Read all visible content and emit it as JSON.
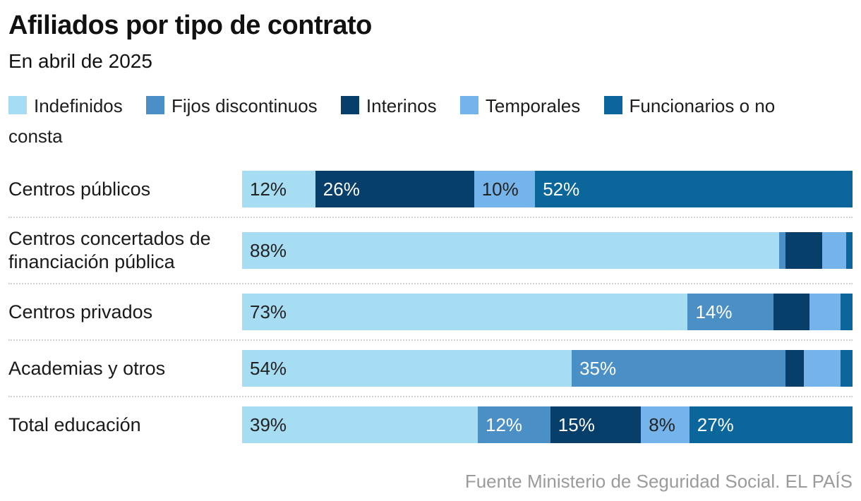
{
  "header": {
    "title": "Afiliados por tipo de contrato",
    "subtitle": "En abril de 2025"
  },
  "legend": [
    {
      "label": "Indefinidos",
      "color": "#A6DDF3"
    },
    {
      "label": "Fijos discontinuos",
      "color": "#4A90C6"
    },
    {
      "label": "Interinos",
      "color": "#083F6A"
    },
    {
      "label": "Temporales",
      "color": "#74B4EB"
    },
    {
      "label": "Funcionarios o no consta",
      "color": "#0B679B"
    }
  ],
  "chart_data": {
    "type": "bar",
    "stacked": true,
    "orientation": "horizontal",
    "unit": "%",
    "xlim": [
      0,
      100
    ],
    "grid": false,
    "legend_position": "top",
    "series_names": [
      "Indefinidos",
      "Fijos discontinuos",
      "Interinos",
      "Temporales",
      "Funcionarios o no consta"
    ],
    "colors": [
      "#A6DDF3",
      "#4A90C6",
      "#083F6A",
      "#74B4EB",
      "#0B679B"
    ],
    "label_text_colors": [
      "#222222",
      "#ffffff",
      "#ffffff",
      "#222222",
      "#ffffff"
    ],
    "rows": [
      {
        "category": "Centros públicos",
        "values": [
          12,
          0,
          26,
          10,
          52
        ],
        "shown_labels": [
          "12%",
          "",
          "26%",
          "10%",
          "52%"
        ]
      },
      {
        "category": "Centros concertados de financiación pública",
        "values": [
          88,
          1,
          6,
          4,
          1
        ],
        "shown_labels": [
          "88%",
          "",
          "",
          "",
          ""
        ]
      },
      {
        "category": "Centros privados",
        "values": [
          73,
          14,
          6,
          5,
          2
        ],
        "shown_labels": [
          "73%",
          "14%",
          "",
          "",
          ""
        ]
      },
      {
        "category": "Academias y otros",
        "values": [
          54,
          35,
          3,
          6,
          2
        ],
        "shown_labels": [
          "54%",
          "35%",
          "",
          "",
          ""
        ]
      },
      {
        "category": "Total educación",
        "values": [
          39,
          12,
          15,
          8,
          27
        ],
        "shown_labels": [
          "39%",
          "12%",
          "15%",
          "8%",
          "27%"
        ]
      }
    ]
  },
  "footer": {
    "source": "Fuente Ministerio de Seguridad Social. EL PAÍS"
  }
}
